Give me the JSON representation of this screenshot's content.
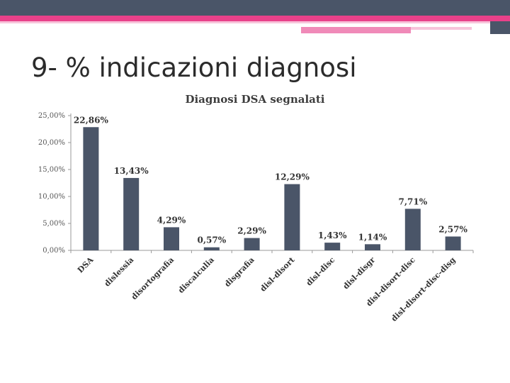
{
  "slide": {
    "title": "9- % indicazioni diagnosi"
  },
  "colors": {
    "bar": "#4a5568",
    "accent": "#e9418a"
  },
  "chart_data": {
    "type": "bar",
    "title": "Diagnosi DSA segnalati",
    "categories": [
      "DSA",
      "dislessia",
      "disortografia",
      "discalculia",
      "disgrafia",
      "disl-disort",
      "disl-disc",
      "disl-disgr",
      "disl-disort-disc",
      "disl-disort-disc-disg"
    ],
    "values": [
      22.86,
      13.43,
      4.29,
      0.57,
      2.29,
      12.29,
      1.43,
      1.14,
      7.71,
      2.57
    ],
    "value_labels": [
      "22,86%",
      "13,43%",
      "4,29%",
      "0,57%",
      "2,29%",
      "12,29%",
      "1,43%",
      "1,14%",
      "7,71%",
      "2,57%"
    ],
    "ytick_values": [
      0,
      5,
      10,
      15,
      20,
      25
    ],
    "ytick_labels": [
      "0,00%",
      "5,00%",
      "10,00%",
      "15,00%",
      "20,00%",
      "25,00%"
    ],
    "ylim": [
      0,
      25
    ],
    "xlabel": "",
    "ylabel": "",
    "grid": false
  }
}
